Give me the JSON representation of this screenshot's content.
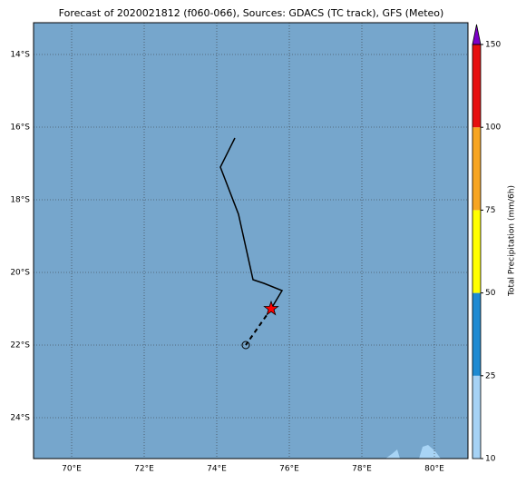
{
  "chart_data": {
    "type": "map",
    "title": "Forecast of 2020021812 (f060-066), Sources: GDACS (TC track), GFS (Meteo)",
    "xlim": [
      68.95,
      80.925
    ],
    "ylim": [
      -25.125,
      -13.125
    ],
    "xticks": [
      {
        "value": 70,
        "label": "70°E"
      },
      {
        "value": 72,
        "label": "72°E"
      },
      {
        "value": 74,
        "label": "74°E"
      },
      {
        "value": 76,
        "label": "76°E"
      },
      {
        "value": 78,
        "label": "78°E"
      },
      {
        "value": 80,
        "label": "80°E"
      }
    ],
    "yticks": [
      {
        "value": -14,
        "label": "14°S"
      },
      {
        "value": -16,
        "label": "16°S"
      },
      {
        "value": -18,
        "label": "18°S"
      },
      {
        "value": -20,
        "label": "20°S"
      },
      {
        "value": -22,
        "label": "22°S"
      },
      {
        "value": -24,
        "label": "24°S"
      }
    ],
    "grid": true,
    "ocean_color": "#76a6cc",
    "track": {
      "color": "#000000",
      "lon": [
        74.5,
        74.1,
        74.6,
        75.0,
        75.3,
        75.8,
        75.5
      ],
      "lat": [
        -16.3,
        -17.1,
        -18.4,
        -20.2,
        -20.3,
        -20.5,
        -21.0
      ]
    },
    "forecast": {
      "lon": [
        75.5,
        74.8
      ],
      "lat": [
        -21.0,
        -22.0
      ]
    },
    "current_marker_color": "#ff0000",
    "colorbar": {
      "label": "Total Precipitation (mm/6h)",
      "ticks": [
        10,
        25,
        50,
        75,
        100,
        150
      ],
      "colors": [
        "#a6d2f5",
        "#1e8ad2",
        "#ffff00",
        "#f7a521",
        "#e60f0f"
      ],
      "extend_color": "#7d00c8"
    }
  }
}
